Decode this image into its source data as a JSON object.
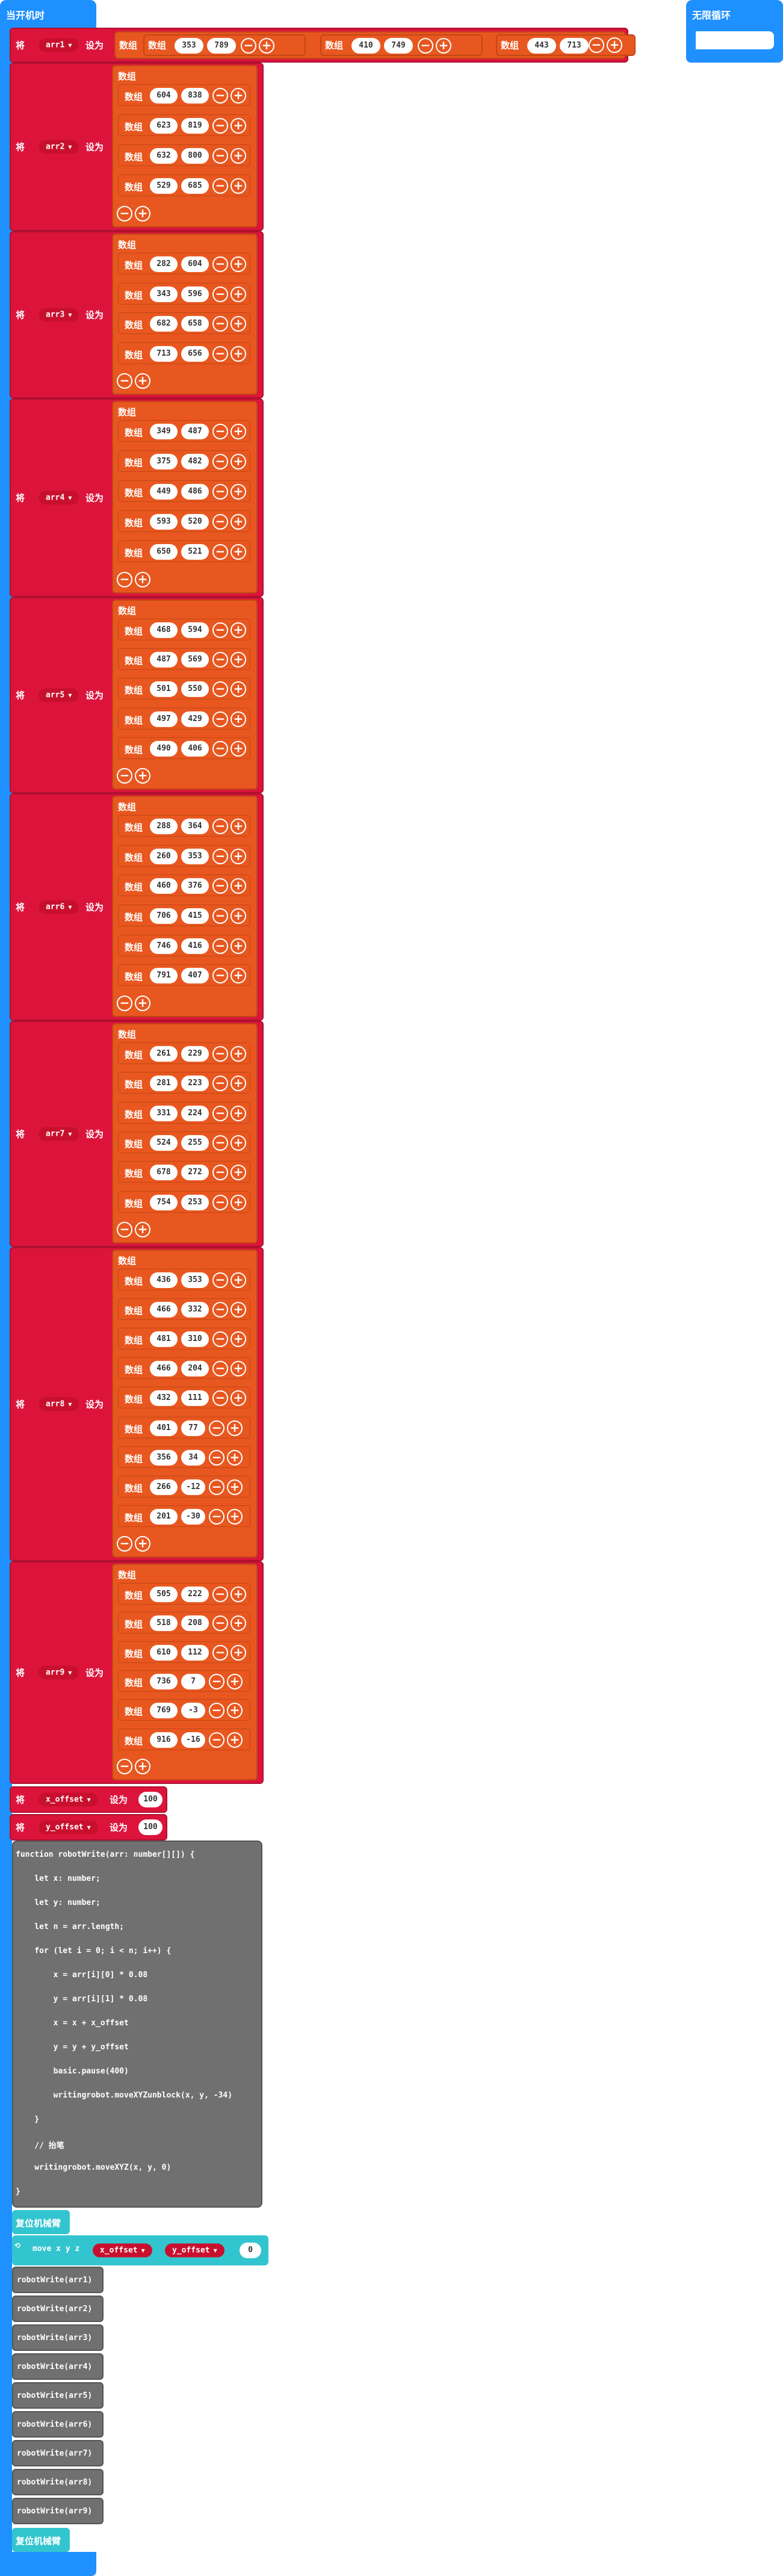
{
  "hat1": {
    "label": "当开机时"
  },
  "hat2": {
    "label": "无限循环"
  },
  "set_label": "将",
  "to_label": "设为",
  "array_label": "数组",
  "arr1": {
    "name": "arr1",
    "items": [
      [
        "353",
        "789"
      ],
      [
        "410",
        "749"
      ],
      [
        "443",
        "713"
      ]
    ]
  },
  "arrays": [
    {
      "name": "arr2",
      "rows": [
        [
          "604",
          "838"
        ],
        [
          "623",
          "819"
        ],
        [
          "632",
          "800"
        ],
        [
          "529",
          "685"
        ]
      ]
    },
    {
      "name": "arr3",
      "rows": [
        [
          "282",
          "604"
        ],
        [
          "343",
          "596"
        ],
        [
          "682",
          "658"
        ],
        [
          "713",
          "656"
        ]
      ]
    },
    {
      "name": "arr4",
      "rows": [
        [
          "349",
          "487"
        ],
        [
          "375",
          "482"
        ],
        [
          "449",
          "486"
        ],
        [
          "593",
          "520"
        ],
        [
          "650",
          "521"
        ]
      ]
    },
    {
      "name": "arr5",
      "rows": [
        [
          "468",
          "594"
        ],
        [
          "487",
          "569"
        ],
        [
          "501",
          "550"
        ],
        [
          "497",
          "429"
        ],
        [
          "490",
          "406"
        ]
      ]
    },
    {
      "name": "arr6",
      "rows": [
        [
          "288",
          "364"
        ],
        [
          "260",
          "353"
        ],
        [
          "460",
          "376"
        ],
        [
          "706",
          "415"
        ],
        [
          "746",
          "416"
        ],
        [
          "791",
          "407"
        ]
      ]
    },
    {
      "name": "arr7",
      "rows": [
        [
          "261",
          "229"
        ],
        [
          "281",
          "223"
        ],
        [
          "331",
          "224"
        ],
        [
          "524",
          "255"
        ],
        [
          "678",
          "272"
        ],
        [
          "754",
          "253"
        ]
      ]
    },
    {
      "name": "arr8",
      "rows": [
        [
          "436",
          "353"
        ],
        [
          "466",
          "332"
        ],
        [
          "481",
          "310"
        ],
        [
          "466",
          "204"
        ],
        [
          "432",
          "111"
        ],
        [
          "401",
          "77"
        ],
        [
          "356",
          "34"
        ],
        [
          "266",
          "-12"
        ],
        [
          "201",
          "-30"
        ]
      ]
    },
    {
      "name": "arr9",
      "rows": [
        [
          "505",
          "222"
        ],
        [
          "518",
          "208"
        ],
        [
          "610",
          "112"
        ],
        [
          "736",
          "7"
        ],
        [
          "769",
          "-3"
        ],
        [
          "916",
          "-16"
        ]
      ]
    }
  ],
  "xoff": {
    "name": "x_offset",
    "value": "100"
  },
  "yoff": {
    "name": "y_offset",
    "value": "100"
  },
  "code": [
    "function robotWrite(arr: number[][]) {",
    "    let x: number;",
    "    let y: number;",
    "    let n = arr.length;",
    "    for (let i = 0; i < n; i++) {",
    "        x = arr[i][0] * 0.08",
    "        y = arr[i][1] * 0.08",
    "        x = x + x_offset",
    "        y = y + y_offset",
    "        basic.pause(400)",
    "        writingrobot.moveXYZunblock(x, y, -34)",
    "    }",
    "    // 抬笔",
    "    writingrobot.moveXYZ(x, y, 0)",
    "}"
  ],
  "reset_label": "复位机械臂",
  "move": {
    "prefix": "move x y z",
    "x": "x_offset",
    "y": "y_offset",
    "z": "0"
  },
  "calls": [
    "robotWrite(arr1)",
    "robotWrite(arr2)",
    "robotWrite(arr3)",
    "robotWrite(arr4)",
    "robotWrite(arr5)",
    "robotWrite(arr6)",
    "robotWrite(arr7)",
    "robotWrite(arr8)",
    "robotWrite(arr9)"
  ],
  "reset_label2": "复位机械臂"
}
